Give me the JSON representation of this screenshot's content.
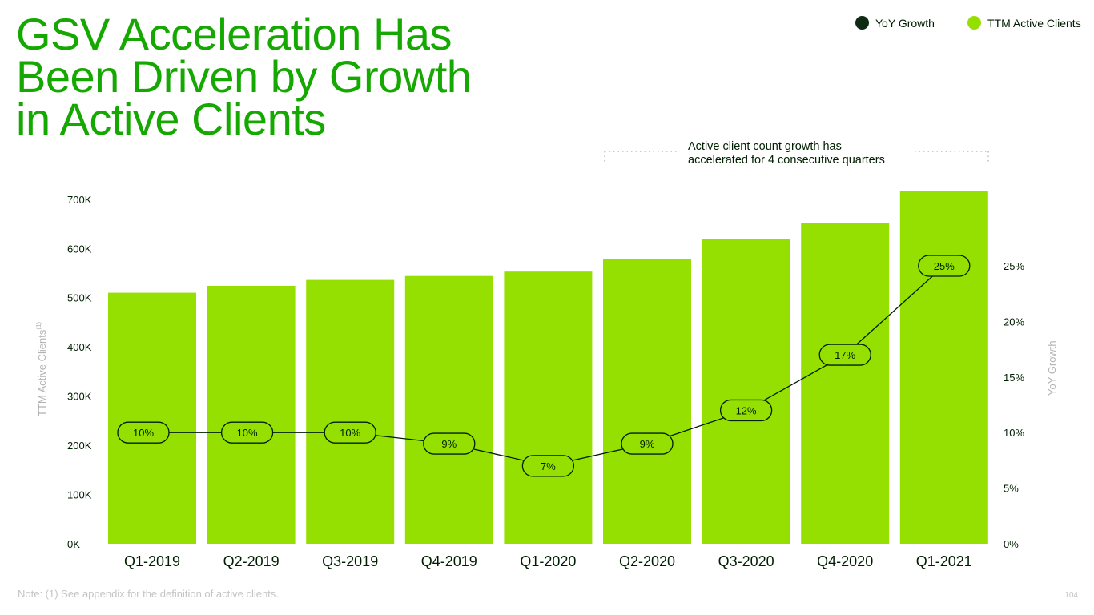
{
  "page": {
    "title_lines": [
      "GSV Acceleration Has",
      "Been Driven by Growth",
      "in Active Clients"
    ],
    "annotation_lines": [
      "Active client count growth has",
      "accelerated for 4 consecutive quarters"
    ],
    "note": "Note: (1) See appendix for the definition of active clients.",
    "page_number": "104",
    "legend": [
      {
        "label": "YoY Growth",
        "color": "#0d2b12"
      },
      {
        "label": "TTM Active Clients",
        "color": "#95e000"
      }
    ]
  },
  "chart_data": {
    "type": "bar",
    "categories": [
      "Q1-2019",
      "Q2-2019",
      "Q3-2019",
      "Q4-2019",
      "Q1-2020",
      "Q2-2020",
      "Q3-2020",
      "Q4-2020",
      "Q1-2021"
    ],
    "series": [
      {
        "name": "TTM Active Clients",
        "type": "bar",
        "axis": "left",
        "values": [
          510000,
          524000,
          536000,
          544000,
          553000,
          578000,
          619000,
          652000,
          716000
        ]
      },
      {
        "name": "YoY Growth",
        "type": "line",
        "axis": "right",
        "values": [
          10,
          10,
          10,
          9,
          7,
          9,
          12,
          17,
          25
        ],
        "labels": [
          "10%",
          "10%",
          "10%",
          "9%",
          "7%",
          "9%",
          "12%",
          "17%",
          "25%"
        ]
      }
    ],
    "ylabel": "TTM Active Clients(1)",
    "ylabel_main": "TTM Active Clients",
    "ylabel_sup": "(1)",
    "y2label": "YoY Growth",
    "left_ticks": [
      {
        "value": 0,
        "label": "0K"
      },
      {
        "value": 100000,
        "label": "100K"
      },
      {
        "value": 200000,
        "label": "200K"
      },
      {
        "value": 300000,
        "label": "300K"
      },
      {
        "value": 400000,
        "label": "400K"
      },
      {
        "value": 500000,
        "label": "500K"
      },
      {
        "value": 600000,
        "label": "600K"
      },
      {
        "value": 700000,
        "label": "700K"
      }
    ],
    "right_ticks": [
      {
        "value": 0,
        "label": "0%"
      },
      {
        "value": 5,
        "label": "5%"
      },
      {
        "value": 10,
        "label": "10%"
      },
      {
        "value": 15,
        "label": "15%"
      },
      {
        "value": 20,
        "label": "20%"
      },
      {
        "value": 25,
        "label": "25%"
      }
    ],
    "ylim": [
      0,
      716000
    ],
    "y2lim": [
      0,
      31.7
    ],
    "grid": false,
    "bar_color": "#95e000",
    "line_color": "#001e00"
  }
}
